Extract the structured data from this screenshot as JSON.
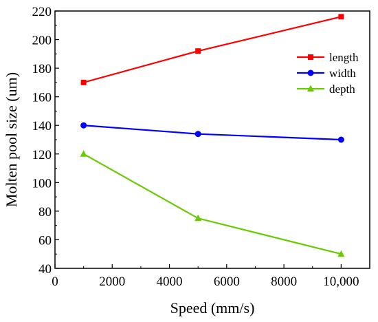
{
  "chart_data": {
    "type": "line",
    "title": "",
    "xlabel": "Speed (mm/s)",
    "ylabel": "Molten pool size (um)",
    "xlim": [
      0,
      11000
    ],
    "ylim": [
      40,
      220
    ],
    "x_ticks": [
      0,
      2000,
      4000,
      6000,
      8000,
      10000
    ],
    "x_tick_labels": [
      "0",
      "2000",
      "4000",
      "6000",
      "8000",
      "10,000"
    ],
    "y_ticks": [
      40,
      60,
      80,
      100,
      120,
      140,
      160,
      180,
      200,
      220
    ],
    "y_tick_labels": [
      "40",
      "60",
      "80",
      "100",
      "120",
      "140",
      "160",
      "180",
      "200",
      "220"
    ],
    "grid": false,
    "legend_position": "top-right",
    "series": [
      {
        "name": "length",
        "color": "#ff0000",
        "marker": "square",
        "x": [
          1000,
          5000,
          10000
        ],
        "y": [
          170,
          192,
          216
        ]
      },
      {
        "name": "width",
        "color": "#0000ff",
        "marker": "circle",
        "x": [
          1000,
          5000,
          10000
        ],
        "y": [
          140,
          134,
          130
        ]
      },
      {
        "name": "depth",
        "color": "#66cc00",
        "marker": "triangle",
        "x": [
          1000,
          5000,
          10000
        ],
        "y": [
          120,
          75,
          50
        ]
      }
    ]
  }
}
